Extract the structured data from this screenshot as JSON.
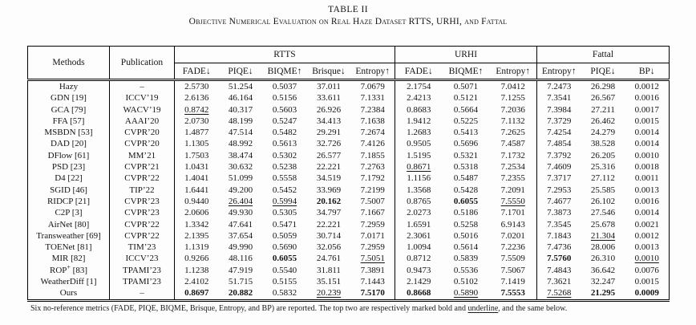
{
  "title": "TABLE II",
  "subtitle": "Objective Numerical Evaluation on Real Haze Dataset RTTS, URHI, and Fattal",
  "table": {
    "columns": {
      "methods": "Methods",
      "publication": "Publication"
    },
    "groups": [
      {
        "label": "RTTS",
        "metrics": [
          "FADE↓",
          "PIQE↓",
          "BIQME↑",
          "Brisque↓",
          "Entropy↑"
        ]
      },
      {
        "label": "URHI",
        "metrics": [
          "FADE↓",
          "BIQME↑",
          "Entropy↑"
        ]
      },
      {
        "label": "Fattal",
        "metrics": [
          "Entropy↑",
          "PIQE↓",
          "BP↓"
        ]
      }
    ],
    "rows": [
      {
        "method": "Hazy",
        "pub": "–",
        "v": [
          "2.5730",
          "51.254",
          "0.5037",
          "37.011",
          "7.0679",
          "2.1754",
          "0.5071",
          "7.0412",
          "7.2473",
          "26.298",
          "0.0012"
        ]
      },
      {
        "method": "GDN [19]",
        "pub": "ICCV’19",
        "v": [
          "2.6136",
          "46.164",
          "0.5156",
          "33.611",
          "7.1331",
          "2.4213",
          "0.5121",
          "7.1255",
          "7.3541",
          "26.567",
          "0.0016"
        ]
      },
      {
        "method": "GCA [79]",
        "pub": "WACV’19",
        "v": [
          "0.8742",
          "40.317",
          "0.5603",
          "26.926",
          "7.2384",
          "0.8683",
          "0.5664",
          "7.2036",
          "7.3984",
          "27.211",
          "0.0017"
        ],
        "u": [
          0
        ]
      },
      {
        "method": "FFA [57]",
        "pub": "AAAI’20",
        "v": [
          "2.0730",
          "48.199",
          "0.5247",
          "34.413",
          "7.1638",
          "1.9412",
          "0.5225",
          "7.1132",
          "7.3729",
          "26.462",
          "0.0015"
        ]
      },
      {
        "method": "MSBDN [53]",
        "pub": "CVPR’20",
        "v": [
          "1.4877",
          "47.514",
          "0.5482",
          "29.291",
          "7.2674",
          "1.2683",
          "0.5413",
          "7.2625",
          "7.4254",
          "24.279",
          "0.0014"
        ]
      },
      {
        "method": "DAD [20]",
        "pub": "CVPR’20",
        "v": [
          "1.1305",
          "48.992",
          "0.5613",
          "32.726",
          "7.4126",
          "0.9505",
          "0.5696",
          "7.4587",
          "7.4854",
          "38.528",
          "0.0014"
        ]
      },
      {
        "method": "DFlow [61]",
        "pub": "MM’21",
        "v": [
          "1.7503",
          "38.474",
          "0.5302",
          "26.577",
          "7.1855",
          "1.5195",
          "0.5321",
          "7.1732",
          "7.3792",
          "26.205",
          "0.0010"
        ]
      },
      {
        "method": "PSD [23]",
        "pub": "CVPR’21",
        "v": [
          "1.0431",
          "30.632",
          "0.5238",
          "22.221",
          "7.2763",
          "0.8671",
          "0.5318",
          "7.2534",
          "7.4609",
          "25.316",
          "0.0018"
        ],
        "u": [
          5
        ]
      },
      {
        "method": "D4 [22]",
        "pub": "CVPR’22",
        "v": [
          "1.4041",
          "51.099",
          "0.5558",
          "34.519",
          "7.1792",
          "1.1156",
          "0.5487",
          "7.2355",
          "7.3717",
          "27.112",
          "0.0011"
        ]
      },
      {
        "method": "SGID [46]",
        "pub": "TIP’22",
        "v": [
          "1.6441",
          "49.200",
          "0.5452",
          "33.969",
          "7.2199",
          "1.3568",
          "0.5428",
          "7.2091",
          "7.2953",
          "25.585",
          "0.0013"
        ]
      },
      {
        "method": "RIDCP [21]",
        "pub": "CVPR’23",
        "v": [
          "0.9440",
          "26.404",
          "0.5994",
          "20.162",
          "7.5007",
          "0.8765",
          "0.6055",
          "7.5550",
          "7.4677",
          "26.102",
          "0.0016"
        ],
        "b": [
          3,
          6
        ],
        "u": [
          1,
          2,
          7
        ]
      },
      {
        "method": "C2P [3]",
        "pub": "CVPR’23",
        "v": [
          "2.0606",
          "49.930",
          "0.5305",
          "34.797",
          "7.1667",
          "2.0273",
          "0.5186",
          "7.1701",
          "7.3873",
          "27.546",
          "0.0014"
        ]
      },
      {
        "method": "AirNet [80]",
        "pub": "CVPR’22",
        "v": [
          "1.3342",
          "47.641",
          "0.5471",
          "22.221",
          "7.2959",
          "1.6591",
          "0.5258",
          "6.9143",
          "7.3545",
          "25.678",
          "0.0021"
        ]
      },
      {
        "method": "Transweather [69]",
        "pub": "CVPR’22",
        "v": [
          "2.1395",
          "37.654",
          "0.5059",
          "30.714",
          "7.0171",
          "2.3061",
          "0.5016",
          "7.0201",
          "7.1843",
          "21.304",
          "0.0012"
        ],
        "u": [
          9
        ]
      },
      {
        "method": "TOENet [81]",
        "pub": "TIM’23",
        "v": [
          "1.1319",
          "49.990",
          "0.5690",
          "32.056",
          "7.2959",
          "1.0094",
          "0.5614",
          "7.2236",
          "7.4736",
          "28.006",
          "0.0013"
        ]
      },
      {
        "method": "MIR [82]",
        "pub": "ICCV’23",
        "v": [
          "0.9266",
          "48.116",
          "0.6055",
          "24.761",
          "7.5051",
          "0.8712",
          "0.5839",
          "7.5509",
          "7.5760",
          "26.310",
          "0.0010"
        ],
        "b": [
          2,
          8
        ],
        "u": [
          4,
          10
        ]
      },
      {
        "method": "ROP",
        "sup": "+",
        "tail": " [83]",
        "pub": "TPAMI’23",
        "v": [
          "1.1238",
          "47.919",
          "0.5540",
          "31.811",
          "7.3891",
          "0.9473",
          "0.5536",
          "7.5067",
          "7.4843",
          "36.642",
          "0.0076"
        ]
      },
      {
        "method": "WeatherDiff [1]",
        "pub": "TPAMI’23",
        "v": [
          "2.4102",
          "51.715",
          "0.5155",
          "35.151",
          "7.1443",
          "2.1429",
          "0.5102",
          "7.1419",
          "7.3621",
          "32.247",
          "0.0015"
        ]
      },
      {
        "method": "Ours",
        "pub": "–",
        "v": [
          "0.8697",
          "20.882",
          "0.5832",
          "20.239",
          "7.5170",
          "0.8668",
          "0.5890",
          "7.5553",
          "7.5268",
          "21.295",
          "0.0009"
        ],
        "b": [
          0,
          1,
          4,
          5,
          7,
          9,
          10
        ],
        "u": [
          3,
          6,
          8
        ]
      }
    ]
  },
  "footnote": {
    "pre": "Six no-reference metrics (FADE, PIQE, BIQME, Brisque, Entropy, and BP) are reported. The top two are respectively marked bold and ",
    "underlined": "underline",
    "post": ", and the same below."
  }
}
